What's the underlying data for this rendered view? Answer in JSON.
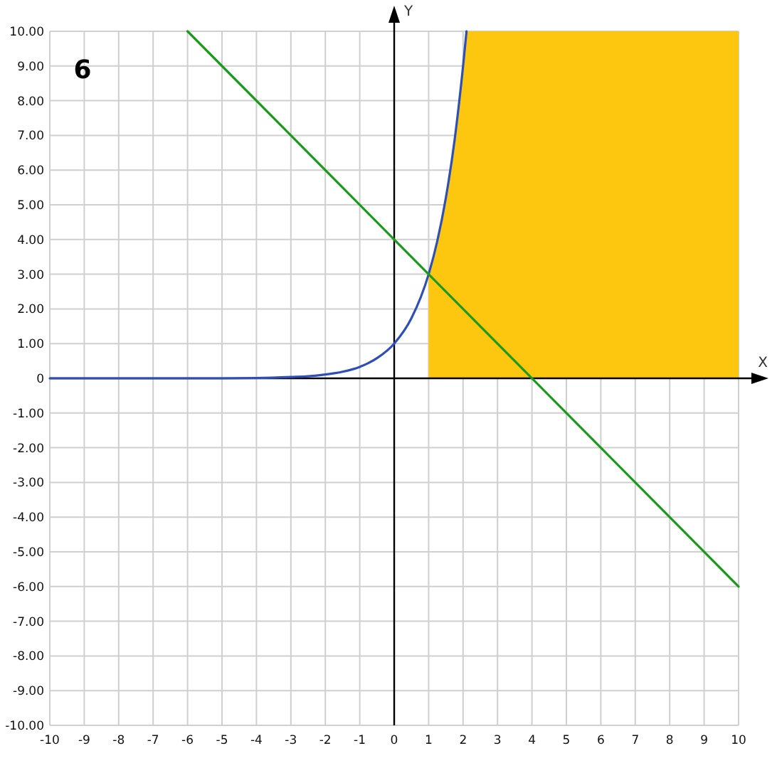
{
  "chart_data": {
    "type": "line",
    "xlabel": "X",
    "ylabel": "Y",
    "annotations": [
      "6"
    ],
    "xlim": [
      -10,
      10
    ],
    "ylim": [
      -10,
      10
    ],
    "xticks": [
      -10,
      -9,
      -8,
      -7,
      -6,
      -5,
      -4,
      -3,
      -2,
      -1,
      0,
      1,
      2,
      3,
      4,
      5,
      6,
      7,
      8,
      9,
      10
    ],
    "yticks": [
      {
        "value": -10,
        "label": "-10.00"
      },
      {
        "value": -9,
        "label": "-9.00"
      },
      {
        "value": -8,
        "label": "-8.00"
      },
      {
        "value": -7,
        "label": "-7.00"
      },
      {
        "value": -6,
        "label": "-6.00"
      },
      {
        "value": -5,
        "label": "-5.00"
      },
      {
        "value": -4,
        "label": "-4.00"
      },
      {
        "value": -3,
        "label": "-3.00"
      },
      {
        "value": -2,
        "label": "-2.00"
      },
      {
        "value": -1,
        "label": "-1.00"
      },
      0,
      {
        "value": 1,
        "label": "1.00"
      },
      {
        "value": 2,
        "label": "2.00"
      },
      {
        "value": 3,
        "label": "3.00"
      },
      {
        "value": 4,
        "label": "4.00"
      },
      {
        "value": 5,
        "label": "5.00"
      },
      {
        "value": 6,
        "label": "6.00"
      },
      {
        "value": 7,
        "label": "7.00"
      },
      {
        "value": 8,
        "label": "8.00"
      },
      {
        "value": 9,
        "label": "9.00"
      },
      {
        "value": 10,
        "label": "10.00"
      }
    ],
    "grid": true,
    "marker": "none",
    "line_style": "solid",
    "series": [
      {
        "type": "area",
        "color": "#fdc60f",
        "x": [
          1,
          1.25,
          1.5,
          1.75,
          2,
          2.1,
          10
        ],
        "values": [
          3,
          3.95,
          5.2,
          6.84,
          9,
          10,
          10
        ]
      },
      {
        "color": "#2e4fb5",
        "x": [
          -10,
          -5,
          -4,
          -3,
          -2.5,
          -2,
          -1.5,
          -1,
          -0.5,
          0,
          0.5,
          1,
          1.25,
          1.5,
          1.75,
          2,
          2.1
        ],
        "values": [
          0,
          0,
          0.01,
          0.04,
          0.06,
          0.11,
          0.19,
          0.33,
          0.58,
          1,
          1.73,
          3,
          3.95,
          5.2,
          6.84,
          9,
          10
        ]
      },
      {
        "color": "#1a9a1a",
        "x": [
          -6,
          10
        ],
        "values": [
          10,
          -6
        ]
      }
    ]
  }
}
